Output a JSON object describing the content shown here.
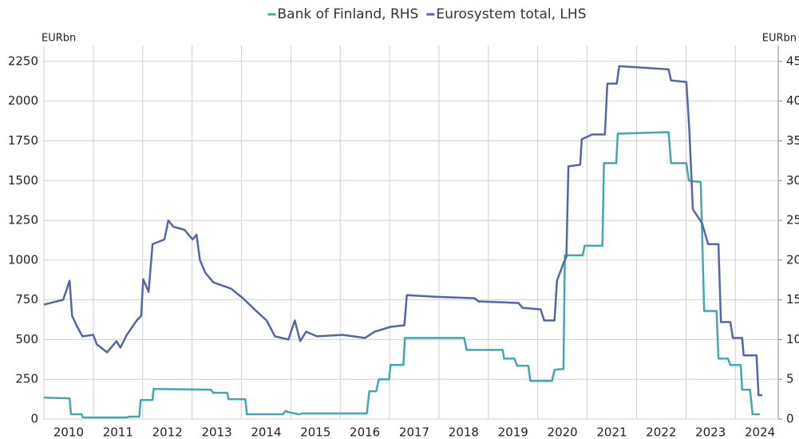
{
  "chart_data": {
    "type": "line",
    "y_label": "EURbn",
    "y2_label": "EURbn",
    "xlim": [
      2010,
      2024.87
    ],
    "xticks": [
      {
        "value": 2010,
        "label": "2010"
      },
      {
        "value": 2011,
        "label": "2011"
      },
      {
        "value": 2012,
        "label": "2012"
      },
      {
        "value": 2013,
        "label": "2013"
      },
      {
        "value": 2014,
        "label": "2014"
      },
      {
        "value": 2015,
        "label": "2015"
      },
      {
        "value": 2016,
        "label": "2016"
      },
      {
        "value": 2017,
        "label": "2017"
      },
      {
        "value": 2018,
        "label": "2018"
      },
      {
        "value": 2019,
        "label": "2019"
      },
      {
        "value": 2020,
        "label": "2020"
      },
      {
        "value": 2021,
        "label": "2021"
      },
      {
        "value": 2022,
        "label": "2022"
      },
      {
        "value": 2023,
        "label": "2023"
      },
      {
        "value": 2024,
        "label": "2024"
      }
    ],
    "ylim": [
      0,
      2350
    ],
    "yticks": [
      0,
      250,
      500,
      750,
      1000,
      1250,
      1500,
      1750,
      2000,
      2250
    ],
    "y2lim": [
      0,
      47
    ],
    "y2ticks": [
      0,
      5,
      10,
      15,
      20,
      25,
      30,
      35,
      40,
      45
    ],
    "grid": true,
    "series": [
      {
        "name": "Bank of Finland, RHS",
        "color": "#44a7ad",
        "axis": "y2",
        "x": [
          2010.0,
          2010.52,
          2010.55,
          2010.76,
          2010.79,
          2011.68,
          2011.73,
          2011.93,
          2011.96,
          2012.2,
          2012.22,
          2013.38,
          2013.43,
          2013.71,
          2013.74,
          2014.08,
          2014.11,
          2014.84,
          2014.89,
          2015.0,
          2015.16,
          2015.24,
          2016.54,
          2016.59,
          2016.73,
          2016.78,
          2016.99,
          2017.02,
          2017.28,
          2017.31,
          2018.51,
          2018.56,
          2019.29,
          2019.32,
          2019.53,
          2019.58,
          2019.81,
          2019.85,
          2020.29,
          2020.34,
          2020.52,
          2020.55,
          2020.91,
          2020.95,
          2021.31,
          2021.34,
          2021.59,
          2021.62,
          2022.65,
          2022.7,
          2023.01,
          2023.06,
          2023.3,
          2023.37,
          2023.62,
          2023.66,
          2023.85,
          2023.9,
          2024.11,
          2024.14,
          2024.3,
          2024.35,
          2024.5
        ],
        "values": [
          2.7,
          2.6,
          0.6,
          0.6,
          0.2,
          0.2,
          0.3,
          0.3,
          2.4,
          2.4,
          3.8,
          3.7,
          3.3,
          3.3,
          2.5,
          2.5,
          0.6,
          0.6,
          1.0,
          0.8,
          0.6,
          0.7,
          0.7,
          3.5,
          3.5,
          5.0,
          5.0,
          6.8,
          6.8,
          10.2,
          10.2,
          8.7,
          8.7,
          7.6,
          7.6,
          6.7,
          6.7,
          4.8,
          4.8,
          6.2,
          6.3,
          20.6,
          20.6,
          21.8,
          21.8,
          32.2,
          32.2,
          35.9,
          36.1,
          32.2,
          32.2,
          30.0,
          29.8,
          13.6,
          13.6,
          7.6,
          7.6,
          6.8,
          6.8,
          3.7,
          3.7,
          0.6,
          0.6
        ]
      },
      {
        "name": "Eurosystem total, LHS",
        "color": "#5566a6",
        "x": [
          2010.0,
          2010.39,
          2010.52,
          2010.57,
          2010.66,
          2010.78,
          2011.0,
          2011.07,
          2011.28,
          2011.47,
          2011.55,
          2011.68,
          2011.88,
          2011.97,
          2012.01,
          2012.12,
          2012.2,
          2012.44,
          2012.52,
          2012.62,
          2012.85,
          2013.01,
          2013.09,
          2013.16,
          2013.27,
          2013.43,
          2013.79,
          2014.03,
          2014.3,
          2014.51,
          2014.68,
          2014.95,
          2015.08,
          2015.19,
          2015.31,
          2015.53,
          2016.05,
          2016.5,
          2016.7,
          2017.02,
          2017.3,
          2017.35,
          2017.91,
          2018.72,
          2018.8,
          2019.61,
          2019.69,
          2020.06,
          2020.13,
          2020.34,
          2020.39,
          2020.52,
          2020.58,
          2020.62,
          2020.86,
          2020.89,
          2021.1,
          2021.36,
          2021.41,
          2021.6,
          2021.65,
          2022.65,
          2022.7,
          2023.01,
          2023.07,
          2023.14,
          2023.33,
          2023.45,
          2023.66,
          2023.71,
          2023.9,
          2023.95,
          2024.14,
          2024.17,
          2024.43,
          2024.47,
          2024.55
        ],
        "values": [
          720,
          750,
          870,
          650,
          590,
          520,
          530,
          470,
          420,
          490,
          450,
          530,
          620,
          650,
          880,
          800,
          1100,
          1130,
          1250,
          1210,
          1190,
          1130,
          1160,
          1000,
          920,
          860,
          820,
          760,
          680,
          620,
          520,
          500,
          620,
          490,
          550,
          520,
          530,
          510,
          550,
          580,
          590,
          780,
          770,
          760,
          740,
          730,
          700,
          690,
          620,
          620,
          870,
          980,
          1020,
          1590,
          1600,
          1760,
          1790,
          1790,
          2110,
          2110,
          2220,
          2200,
          2130,
          2120,
          1820,
          1320,
          1230,
          1100,
          1100,
          610,
          610,
          510,
          510,
          400,
          400,
          150,
          150
        ]
      }
    ]
  }
}
